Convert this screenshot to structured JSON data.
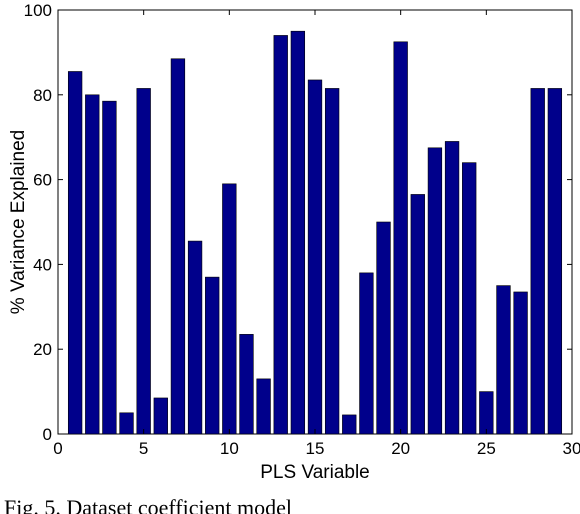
{
  "chart_data": {
    "type": "bar",
    "x": [
      1,
      2,
      3,
      4,
      5,
      6,
      7,
      8,
      9,
      10,
      11,
      12,
      13,
      14,
      15,
      16,
      17,
      18,
      19,
      20,
      21,
      22,
      23,
      24,
      25,
      26,
      27,
      28,
      29
    ],
    "values": [
      85.5,
      80,
      78.5,
      5,
      81.5,
      8.5,
      88.5,
      45.5,
      37,
      59,
      23.5,
      13,
      94,
      95,
      83.5,
      81.5,
      4.5,
      38,
      50,
      92.5,
      56.5,
      67.5,
      69,
      64,
      10,
      35,
      33.5,
      81.5,
      81.5
    ],
    "title": "",
    "xlabel": "PLS Variable",
    "ylabel": "% Variance Explained",
    "xlim": [
      0,
      30
    ],
    "ylim": [
      0,
      100
    ],
    "xticks": [
      0,
      5,
      10,
      15,
      20,
      25,
      30
    ],
    "yticks": [
      0,
      20,
      40,
      60,
      80,
      100
    ],
    "bar_color": "#00008b",
    "grid": false,
    "legend": "none"
  },
  "caption": "Fig. 5.   Dataset coefficient model"
}
